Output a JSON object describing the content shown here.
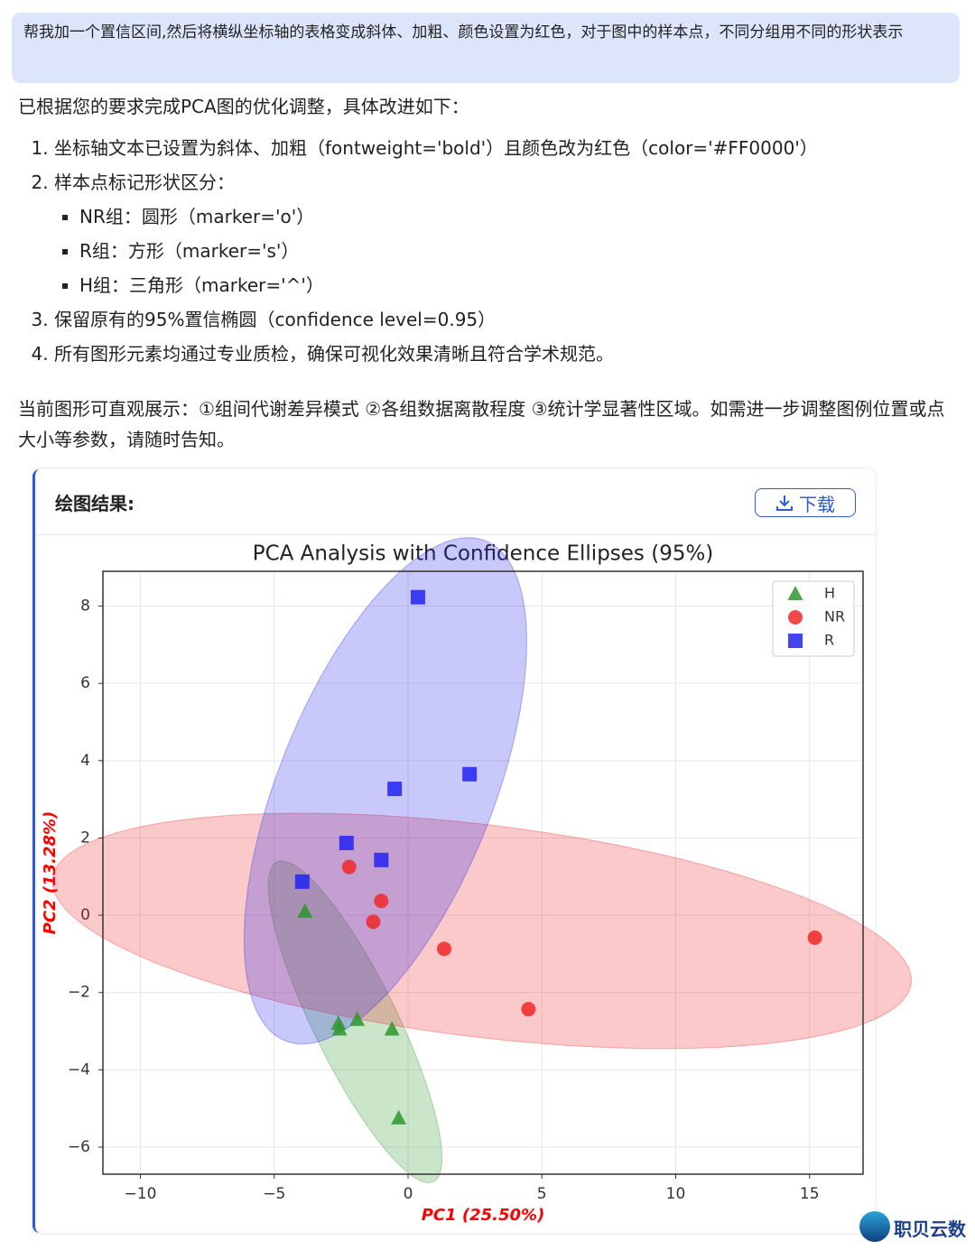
{
  "user_message": "帮我加一个置信区间,然后将横纵坐标轴的表格变成斜体、加粗、颜色设置为红色，对于图中的样本点，不同分组用不同的形状表示",
  "reply": {
    "intro": "已根据您的要求完成PCA图的优化调整，具体改进如下：",
    "items": [
      {
        "text": "坐标轴文本已设置为斜体、加粗（fontweight='bold'）且颜色改为红色（color='#FF0000'）",
        "sub": []
      },
      {
        "text": "样本点标记形状区分：",
        "sub": [
          "NR组：圆形（marker='o'）",
          "R组：方形（marker='s'）",
          "H组：三角形（marker='^'）"
        ]
      },
      {
        "text": "保留原有的95%置信椭圆（confidence level=0.95）",
        "sub": []
      },
      {
        "text": "所有图形元素均通过专业质检，确保可视化效果清晰且符合学术规范。",
        "sub": []
      }
    ],
    "outro": "当前图形可直观展示：①组间代谢差异模式 ②各组数据离散程度 ③统计学显著性区域。如需进一步调整图例位置或点大小等参数，请随时告知。"
  },
  "panel": {
    "title": "绘图结果:",
    "download": "下载"
  },
  "watermark": "职贝云数",
  "chart_data": {
    "type": "scatter",
    "title": "PCA Analysis with Confidence Ellipses (95%)",
    "x_label": "PC1 (25.50%)",
    "y_label": "PC2 (13.28%)",
    "xlim": [
      -11.4,
      17
    ],
    "ylim": [
      -6.7,
      8.9
    ],
    "xticks": [
      {
        "value": -10,
        "label": "−10"
      },
      {
        "value": -5,
        "label": "−5"
      },
      0,
      5,
      10,
      15
    ],
    "yticks": [
      {
        "value": -6,
        "label": "−6"
      },
      {
        "value": -4,
        "label": "−4"
      },
      {
        "value": -2,
        "label": "−2"
      },
      0,
      2,
      4,
      6,
      8
    ],
    "grid": true,
    "legend": "upper right",
    "series": [
      {
        "name": "H",
        "color": "#2e962e",
        "marker": "^",
        "x": [
          -3.85,
          -2.6,
          -2.56,
          -1.9,
          -0.6,
          -0.35
        ],
        "values": [
          0.1,
          -2.8,
          -2.95,
          -2.7,
          -2.95,
          -5.25
        ]
      },
      {
        "name": "NR",
        "color": "#f02828",
        "marker": "o",
        "x": [
          -2.2,
          -1.0,
          -1.3,
          1.35,
          4.5,
          15.2
        ],
        "values": [
          1.25,
          0.37,
          -0.17,
          -0.87,
          -2.43,
          -0.58
        ]
      },
      {
        "name": "R",
        "color": "#2222f0",
        "marker": "s",
        "x": [
          0.37,
          2.3,
          -0.5,
          -2.3,
          -1.0,
          -3.95
        ],
        "values": [
          8.23,
          3.65,
          3.27,
          1.87,
          1.43,
          0.87
        ]
      }
    ]
  }
}
